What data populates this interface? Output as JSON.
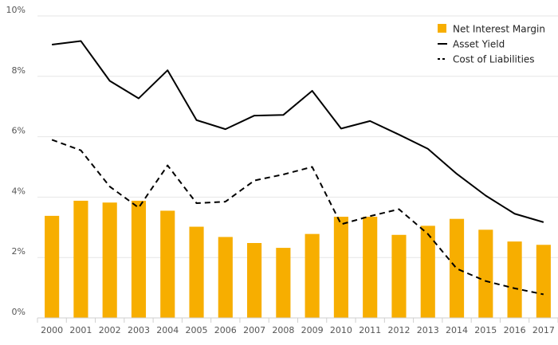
{
  "chart_data": {
    "type": "bar",
    "categories": [
      "2000",
      "2001",
      "2002",
      "2003",
      "2004",
      "2005",
      "2006",
      "2007",
      "2008",
      "2009",
      "2010",
      "2011",
      "2012",
      "2013",
      "2014",
      "2015",
      "2016",
      "2017"
    ],
    "ylim": [
      0,
      10
    ],
    "yticks": [
      0,
      2,
      4,
      6,
      8,
      10
    ],
    "ytick_labels": [
      "0%",
      "2%",
      "4%",
      "6%",
      "8%",
      "10%"
    ],
    "grid": true,
    "legend_position": "top-right",
    "series": [
      {
        "name": "Net Interest Margin",
        "type": "bar",
        "color": "#F7AE00",
        "values": [
          3.38,
          3.88,
          3.82,
          3.88,
          3.55,
          3.02,
          2.68,
          2.48,
          2.32,
          2.78,
          3.35,
          3.35,
          2.75,
          3.05,
          3.28,
          2.92,
          2.53,
          2.42
        ]
      },
      {
        "name": "Asset Yield",
        "type": "line",
        "style": "solid",
        "color": "#000000",
        "values": [
          9.05,
          9.17,
          7.85,
          7.27,
          8.2,
          6.55,
          6.25,
          6.7,
          6.72,
          7.52,
          6.27,
          6.52,
          6.07,
          5.6,
          4.77,
          4.05,
          3.45,
          3.17
        ]
      },
      {
        "name": "Cost of Liabilities",
        "type": "line",
        "style": "dashed",
        "color": "#000000",
        "values": [
          5.9,
          5.55,
          4.35,
          3.65,
          5.05,
          3.8,
          3.85,
          4.55,
          4.75,
          5.0,
          3.1,
          3.37,
          3.6,
          2.78,
          1.63,
          1.22,
          0.98,
          0.78
        ]
      }
    ]
  }
}
